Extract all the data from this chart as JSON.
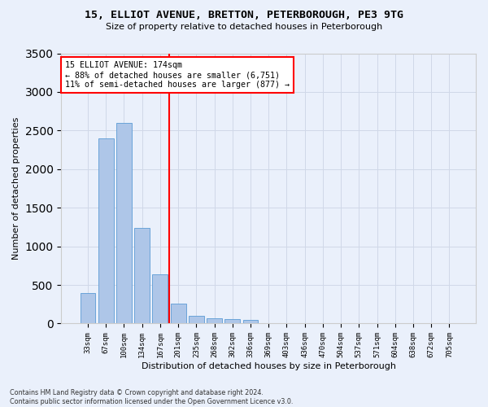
{
  "title": "15, ELLIOT AVENUE, BRETTON, PETERBOROUGH, PE3 9TG",
  "subtitle": "Size of property relative to detached houses in Peterborough",
  "xlabel": "Distribution of detached houses by size in Peterborough",
  "ylabel": "Number of detached properties",
  "categories": [
    "33sqm",
    "67sqm",
    "100sqm",
    "134sqm",
    "167sqm",
    "201sqm",
    "235sqm",
    "268sqm",
    "302sqm",
    "336sqm",
    "369sqm",
    "403sqm",
    "436sqm",
    "470sqm",
    "504sqm",
    "537sqm",
    "571sqm",
    "604sqm",
    "638sqm",
    "672sqm",
    "705sqm"
  ],
  "values": [
    390,
    2400,
    2600,
    1240,
    640,
    260,
    100,
    65,
    60,
    45,
    0,
    0,
    0,
    0,
    0,
    0,
    0,
    0,
    0,
    0,
    0
  ],
  "bar_color": "#aec6e8",
  "bar_edge_color": "#5b9bd5",
  "grid_color": "#d0d8e8",
  "background_color": "#eaf0fb",
  "property_line_x": 4.5,
  "annotation_line1": "15 ELLIOT AVENUE: 174sqm",
  "annotation_line2": "← 88% of detached houses are smaller (6,751)",
  "annotation_line3": "11% of semi-detached houses are larger (877) →",
  "annotation_box_color": "white",
  "annotation_box_edge": "red",
  "property_line_color": "red",
  "ylim": [
    0,
    3500
  ],
  "yticks": [
    0,
    500,
    1000,
    1500,
    2000,
    2500,
    3000,
    3500
  ],
  "footer": "Contains HM Land Registry data © Crown copyright and database right 2024.\nContains public sector information licensed under the Open Government Licence v3.0."
}
